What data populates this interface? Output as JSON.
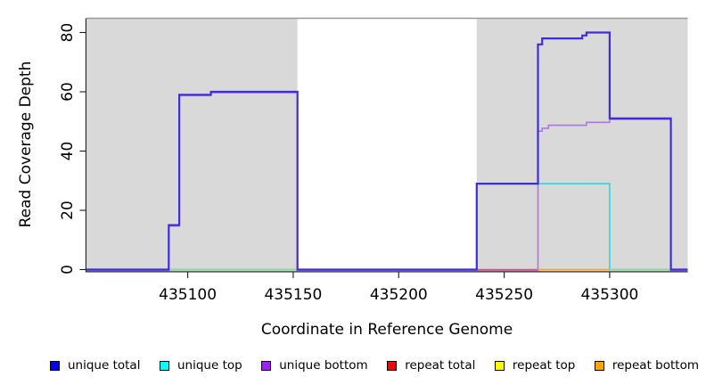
{
  "figure": {
    "xlabel": "Coordinate in Reference Genome",
    "ylabel": "Read Coverage Depth"
  },
  "legend": {
    "items": [
      {
        "label": "unique total",
        "color": "#0000FF"
      },
      {
        "label": "unique top",
        "color": "#00FFFF"
      },
      {
        "label": "unique bottom",
        "color": "#A020F0"
      },
      {
        "label": "repeat total",
        "color": "#FF0000"
      },
      {
        "label": "repeat top",
        "color": "#FFFF00"
      },
      {
        "label": "repeat bottom",
        "color": "#FFA500"
      }
    ]
  },
  "chart_data": {
    "type": "line",
    "title": "",
    "xlabel": "Coordinate in Reference Genome",
    "ylabel": "Read Coverage Depth",
    "xlim": [
      435052,
      435337
    ],
    "ylim": [
      0,
      85
    ],
    "x_ticks": [
      435100,
      435150,
      435200,
      435250,
      435300
    ],
    "y_ticks": [
      0,
      20,
      40,
      60,
      80
    ],
    "grid": false,
    "legend_position": "bottom",
    "background_bands": {
      "color": "#D9D9D9",
      "ranges": [
        [
          435052,
          435152
        ],
        [
          435237,
          435337
        ]
      ]
    },
    "series": [
      {
        "name": "unique total",
        "color": "#0000FF",
        "render_color": "#3D2EDC",
        "line_width": 2.2,
        "steps": [
          [
            435052,
            0
          ],
          [
            435091,
            15
          ],
          [
            435096,
            59
          ],
          [
            435111,
            60
          ],
          [
            435152,
            0
          ],
          [
            435237,
            29
          ],
          [
            435266,
            76
          ],
          [
            435268,
            78
          ],
          [
            435287,
            79
          ],
          [
            435289,
            80
          ],
          [
            435300,
            51
          ],
          [
            435329,
            0
          ]
        ]
      },
      {
        "name": "unique top",
        "color": "#00FFFF",
        "render_color": "#1FDDE4",
        "line_width": 1.6,
        "steps": [
          [
            435052,
            0
          ],
          [
            435237,
            29
          ],
          [
            435300,
            0
          ]
        ]
      },
      {
        "name": "unique bottom",
        "color": "#A020F0",
        "render_color": "#B273E3",
        "line_width": 1.6,
        "steps": [
          [
            435052,
            0
          ],
          [
            435091,
            15
          ],
          [
            435096,
            59
          ],
          [
            435111,
            60
          ],
          [
            435152,
            0
          ],
          [
            435266,
            47
          ],
          [
            435268,
            48
          ],
          [
            435271,
            49
          ],
          [
            435289,
            50
          ],
          [
            435300,
            51
          ],
          [
            435329,
            0
          ]
        ]
      },
      {
        "name": "repeat total",
        "color": "#FF0000",
        "render_color": null,
        "line_width": 1.5,
        "steps": [
          [
            435052,
            0
          ]
        ]
      },
      {
        "name": "repeat top",
        "color": "#FFFF00",
        "render_color": null,
        "line_width": 1.5,
        "steps": [
          [
            435052,
            0
          ]
        ]
      },
      {
        "name": "repeat bottom",
        "color": "#FFA500",
        "render_color": null,
        "line_width": 1.5,
        "steps": [
          [
            435052,
            0
          ]
        ]
      }
    ],
    "baseline_overlap_segments": [
      {
        "color": "#8FD98F",
        "range": [
          435091,
          435152
        ]
      },
      {
        "color": "#DC5A6A",
        "range": [
          435237,
          435266
        ]
      },
      {
        "color": "#FF9F1A",
        "range": [
          435266,
          435300
        ]
      },
      {
        "color": "#8FD98F",
        "range": [
          435300,
          435329
        ]
      }
    ]
  }
}
